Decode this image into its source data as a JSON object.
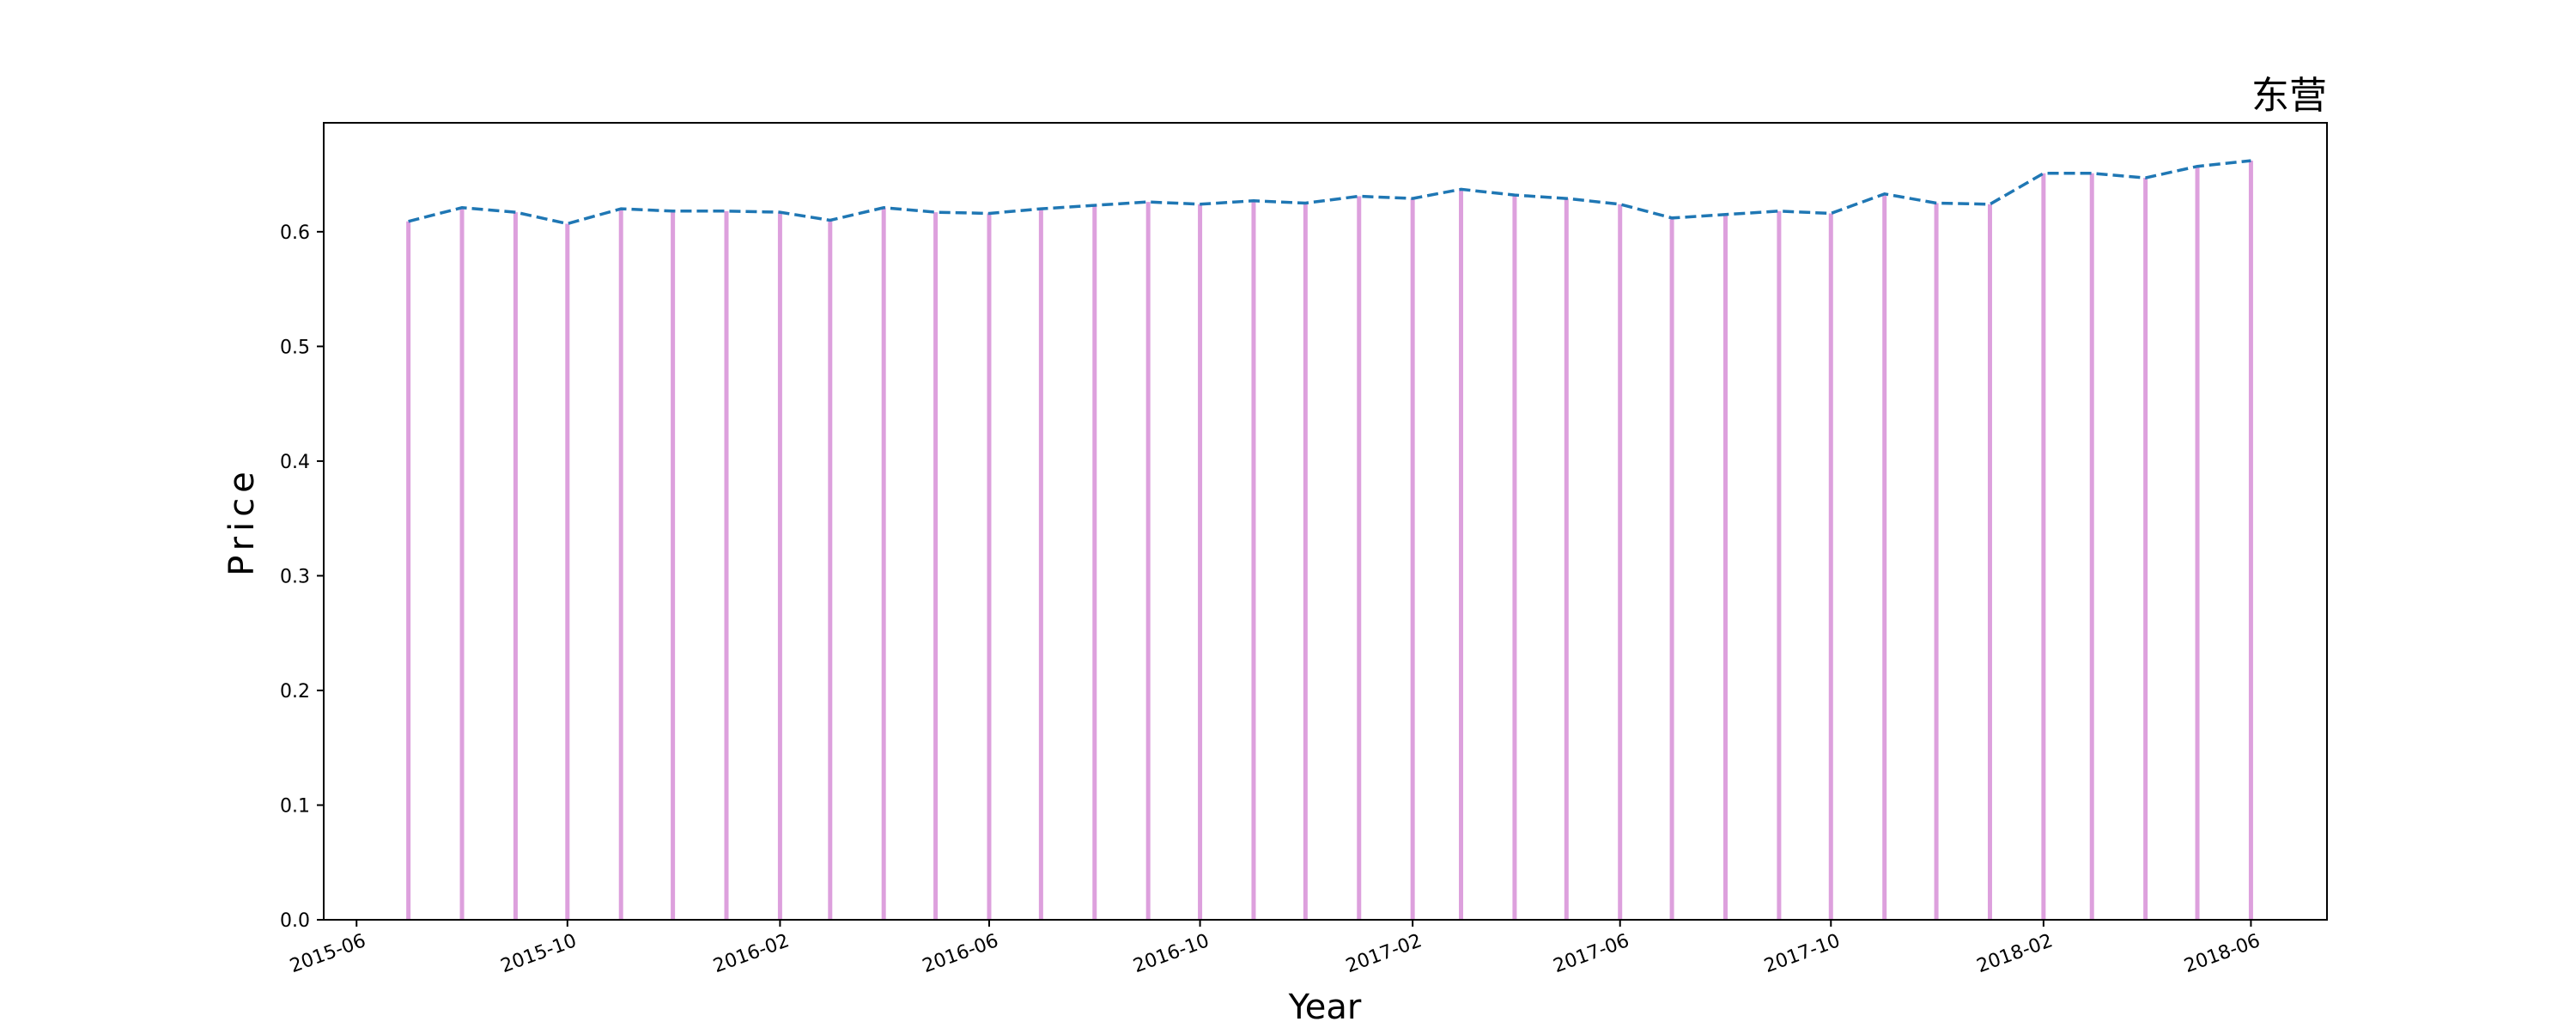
{
  "chart_data": {
    "type": "bar",
    "title": "东营",
    "xlabel": "Year",
    "ylabel": "Price",
    "ylim": [
      0,
      0.695
    ],
    "xlim": [
      "2015-05-13",
      "2018-07-15"
    ],
    "y_ticks": [
      0.0,
      0.1,
      0.2,
      0.3,
      0.4,
      0.5,
      0.6
    ],
    "y_tick_labels": [
      "0.0",
      "0.1",
      "0.2",
      "0.3",
      "0.4",
      "0.5",
      "0.6"
    ],
    "x_ticks": [
      "2015-06-01",
      "2015-10-01",
      "2016-02-01",
      "2016-06-01",
      "2016-10-01",
      "2017-02-01",
      "2017-06-01",
      "2017-10-01",
      "2018-02-01",
      "2018-06-01"
    ],
    "x_tick_labels": [
      "2015-06",
      "2015-10",
      "2016-02",
      "2016-06",
      "2016-10",
      "2017-02",
      "2017-06",
      "2017-10",
      "2018-02",
      "2018-06"
    ],
    "grid": false,
    "series": [
      {
        "kind": "bar",
        "color": "#dda0dd",
        "x": [
          "2015-07-01",
          "2015-08-01",
          "2015-09-01",
          "2015-10-01",
          "2015-11-01",
          "2015-12-01",
          "2016-01-01",
          "2016-02-01",
          "2016-03-01",
          "2016-04-01",
          "2016-05-01",
          "2016-06-01",
          "2016-07-01",
          "2016-08-01",
          "2016-09-01",
          "2016-10-01",
          "2016-11-01",
          "2016-12-01",
          "2017-01-01",
          "2017-02-01",
          "2017-03-01",
          "2017-04-01",
          "2017-05-01",
          "2017-06-01",
          "2017-07-01",
          "2017-08-01",
          "2017-09-01",
          "2017-10-01",
          "2017-11-01",
          "2017-12-01",
          "2018-01-01",
          "2018-02-01",
          "2018-03-01",
          "2018-04-01",
          "2018-05-01",
          "2018-06-01"
        ],
        "values": [
          0.609,
          0.621,
          0.617,
          0.607,
          0.62,
          0.618,
          0.618,
          0.617,
          0.61,
          0.621,
          0.617,
          0.616,
          0.62,
          0.623,
          0.626,
          0.624,
          0.627,
          0.625,
          0.631,
          0.629,
          0.637,
          0.632,
          0.629,
          0.624,
          0.612,
          0.615,
          0.618,
          0.616,
          0.633,
          0.625,
          0.624,
          0.651,
          0.651,
          0.647,
          0.657,
          0.662
        ]
      },
      {
        "kind": "line",
        "style": "dashed",
        "color": "#1f77b4",
        "x": [
          "2015-07-01",
          "2015-08-01",
          "2015-09-01",
          "2015-10-01",
          "2015-11-01",
          "2015-12-01",
          "2016-01-01",
          "2016-02-01",
          "2016-03-01",
          "2016-04-01",
          "2016-05-01",
          "2016-06-01",
          "2016-07-01",
          "2016-08-01",
          "2016-09-01",
          "2016-10-01",
          "2016-11-01",
          "2016-12-01",
          "2017-01-01",
          "2017-02-01",
          "2017-03-01",
          "2017-04-01",
          "2017-05-01",
          "2017-06-01",
          "2017-07-01",
          "2017-08-01",
          "2017-09-01",
          "2017-10-01",
          "2017-11-01",
          "2017-12-01",
          "2018-01-01",
          "2018-02-01",
          "2018-03-01",
          "2018-04-01",
          "2018-05-01",
          "2018-06-01"
        ],
        "values": [
          0.609,
          0.621,
          0.617,
          0.607,
          0.62,
          0.618,
          0.618,
          0.617,
          0.61,
          0.621,
          0.617,
          0.616,
          0.62,
          0.623,
          0.626,
          0.624,
          0.627,
          0.625,
          0.631,
          0.629,
          0.637,
          0.632,
          0.629,
          0.624,
          0.612,
          0.615,
          0.618,
          0.616,
          0.633,
          0.625,
          0.624,
          0.651,
          0.651,
          0.647,
          0.657,
          0.662
        ]
      }
    ]
  }
}
